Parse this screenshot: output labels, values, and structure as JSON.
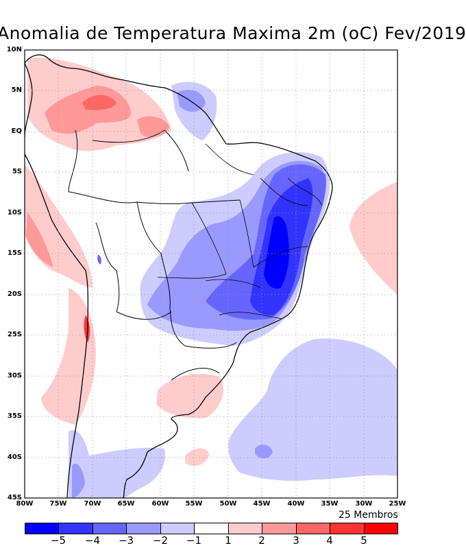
{
  "title": "Anomalia de Temperatura Maxima 2m (oC) Fev/2019",
  "members_label": "25 Membros",
  "lat_labels": [
    "10N",
    "5N",
    "EQ",
    "5S",
    "10S",
    "15S",
    "20S",
    "25S",
    "30S",
    "35S",
    "40S",
    "45S"
  ],
  "lon_labels": [
    "80W",
    "75W",
    "70W",
    "65W",
    "60W",
    "55W",
    "50W",
    "45W",
    "40W",
    "35W",
    "30W",
    "25W"
  ],
  "colorbar": {
    "labels": [
      "-5",
      "-4",
      "-3",
      "-2",
      "-1",
      "1",
      "2",
      "3",
      "4",
      "5"
    ],
    "colors": [
      "#0000ff",
      "#3333ff",
      "#6666ff",
      "#9999ff",
      "#ccccff",
      "#ffffff",
      "#ffcccc",
      "#ff9999",
      "#ff6666",
      "#ff3333",
      "#ff0000"
    ]
  }
}
